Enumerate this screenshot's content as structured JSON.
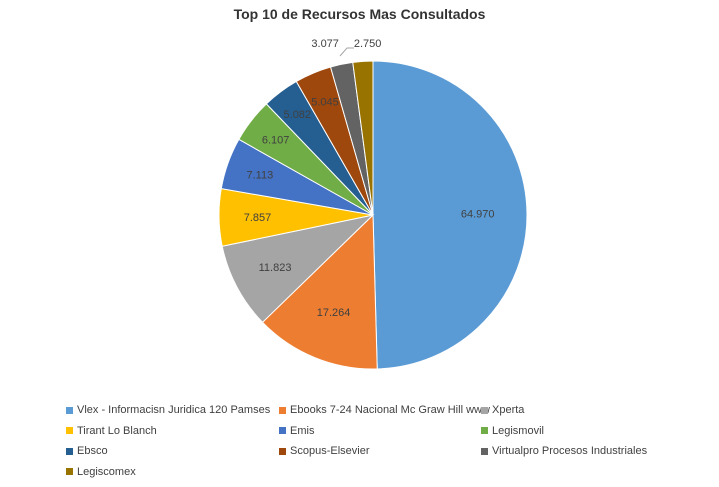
{
  "chart_data": {
    "type": "pie",
    "title": "Top 10 de Recursos Mas Consultados",
    "categories": [
      "Vlex - Informacisn Juridica 120 Pamses",
      "Ebooks 7-24 Nacional Mc Graw Hill www",
      "Xperta",
      "Tirant Lo Blanch",
      "Emis",
      "Legismovil",
      "Ebsco",
      "Scopus-Elsevier",
      "Virtualpro Procesos Industriales",
      "Legiscomex"
    ],
    "values": [
      64970,
      17264,
      11823,
      7857,
      7113,
      6107,
      5082,
      5045,
      3077,
      2750
    ],
    "data_labels": [
      "64.970",
      "17.264",
      "11.823",
      "7.857",
      "7.113",
      "6.107",
      "5.082",
      "5.045",
      "3.077",
      "2.750"
    ],
    "colors": [
      "#5B9BD5",
      "#ED7D31",
      "#A5A5A5",
      "#FFC000",
      "#4472C4",
      "#70AD47",
      "#255E91",
      "#9E480E",
      "#636363",
      "#997300"
    ],
    "start_angle_deg": 0,
    "direction": "clockwise",
    "legend_position": "bottom"
  }
}
